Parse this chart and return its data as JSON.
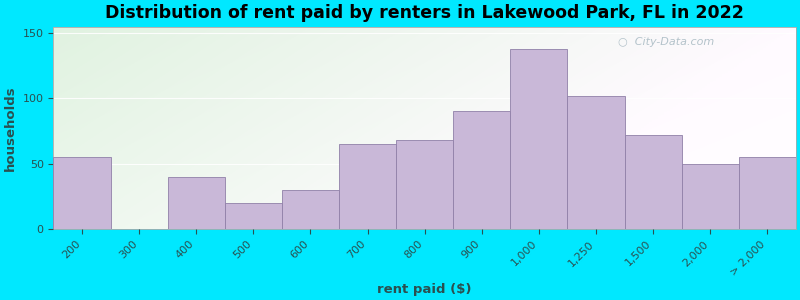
{
  "categories": [
    "200",
    "300",
    "400",
    "500",
    "600",
    "700",
    "800",
    "900",
    "1,000",
    "1,250",
    "1,500",
    "2,000",
    "> 2,000"
  ],
  "values": [
    55,
    0,
    40,
    20,
    30,
    65,
    68,
    90,
    138,
    102,
    72,
    50,
    55
  ],
  "bar_color": "#c9b8d8",
  "bar_edgecolor": "#9080a8",
  "title": "Distribution of rent paid by renters in Lakewood Park, FL in 2022",
  "xlabel": "rent paid ($)",
  "ylabel": "households",
  "ylim": [
    0,
    155
  ],
  "yticks": [
    0,
    50,
    100,
    150
  ],
  "background_outer": "#00e8ff",
  "title_fontsize": 12.5,
  "axis_fontsize": 9.5,
  "watermark": "City-Data.com",
  "tick_color": "#2a5050",
  "label_color": "#2a5050"
}
